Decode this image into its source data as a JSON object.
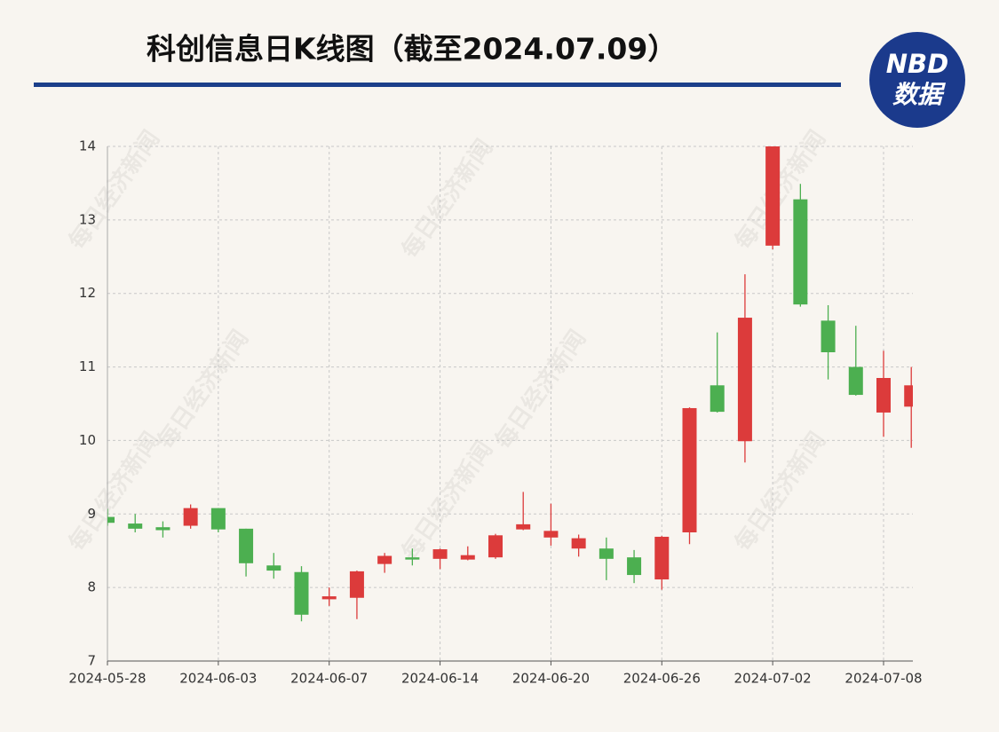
{
  "chart_data": {
    "type": "candlestick",
    "title": "科创信息日K线图（截至2024.07.09）",
    "logo": {
      "line1": "NBD",
      "line2": "数据"
    },
    "watermark": "每日经济新闻",
    "categories": [
      "2024-05-28",
      null,
      null,
      null,
      "2024-06-03",
      null,
      null,
      null,
      "2024-06-07",
      null,
      null,
      null,
      "2024-06-14",
      null,
      null,
      null,
      "2024-06-20",
      null,
      null,
      null,
      "2024-06-26",
      null,
      null,
      null,
      "2024-07-02",
      null,
      null,
      null,
      "2024-07-08",
      null
    ],
    "open": [
      8.96,
      8.87,
      8.82,
      8.84,
      9.08,
      8.8,
      8.3,
      8.21,
      7.84,
      7.86,
      8.32,
      8.41,
      8.39,
      8.38,
      8.41,
      8.79,
      8.68,
      8.53,
      8.53,
      8.41,
      8.11,
      8.75,
      10.75,
      9.99,
      12.65,
      13.28,
      11.63,
      11.0,
      10.38,
      10.46
    ],
    "high": [
      9.07,
      9.0,
      8.9,
      9.13,
      9.08,
      8.8,
      8.47,
      8.29,
      8.0,
      8.23,
      8.47,
      8.53,
      8.53,
      8.56,
      8.73,
      9.3,
      9.14,
      8.72,
      8.68,
      8.51,
      8.7,
      10.45,
      11.47,
      12.26,
      14.0,
      13.49,
      11.84,
      11.56,
      11.22,
      11.0
    ],
    "low": [
      8.84,
      8.75,
      8.68,
      8.8,
      8.75,
      8.15,
      8.12,
      7.54,
      7.75,
      7.57,
      8.2,
      8.3,
      8.25,
      8.37,
      8.39,
      8.78,
      8.57,
      8.42,
      8.1,
      8.06,
      7.97,
      8.59,
      10.38,
      9.7,
      12.6,
      11.82,
      10.83,
      10.61,
      10.05,
      9.9
    ],
    "close": [
      8.88,
      8.8,
      8.78,
      9.08,
      8.79,
      8.33,
      8.23,
      7.63,
      7.88,
      8.22,
      8.43,
      8.38,
      8.52,
      8.44,
      8.71,
      8.86,
      8.77,
      8.67,
      8.39,
      8.17,
      8.69,
      10.44,
      10.39,
      11.67,
      14.0,
      11.85,
      11.2,
      10.62,
      10.85,
      10.75
    ],
    "up_color": "#dc3b3b",
    "down_color": "#4caf50",
    "ylim": [
      7,
      14
    ],
    "yticks": [
      7,
      8,
      9,
      10,
      11,
      12,
      13,
      14
    ],
    "grid": true
  }
}
